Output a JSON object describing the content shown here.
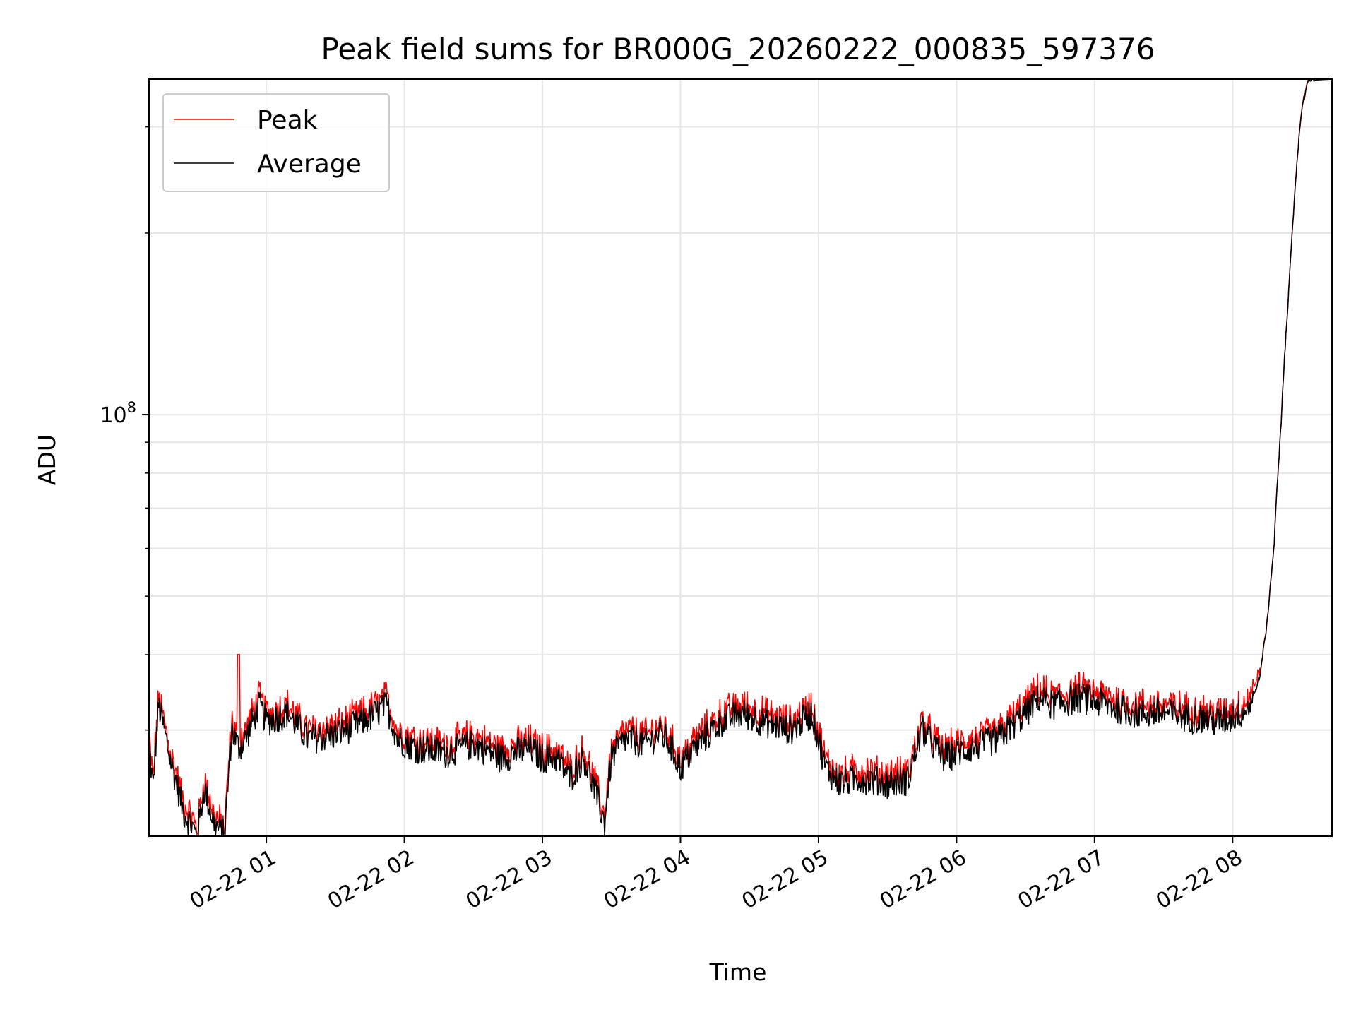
{
  "chart_data": {
    "type": "line",
    "title": "Peak field sums for BR000G_20260222_000835_597376",
    "xlabel": "Time",
    "ylabel": "ADU",
    "x_ticks": [
      "02-22 01",
      "02-22 02",
      "02-22 03",
      "02-22 04",
      "02-22 05",
      "02-22 06",
      "02-22 07",
      "02-22 08"
    ],
    "x_range_hours": [
      0.15,
      8.72
    ],
    "y_scale": "log",
    "y_range": [
      20000000,
      360000000
    ],
    "y_tick_major": {
      "value": 100000000,
      "base": "10",
      "exp": "8"
    },
    "y_tick_minor": [
      30000000,
      40000000,
      50000000,
      60000000,
      70000000,
      80000000,
      90000000,
      200000000,
      300000000
    ],
    "grid": true,
    "legend_position": "upper-left",
    "series": [
      {
        "name": "Peak",
        "color": "#ff0000"
      },
      {
        "name": "Average",
        "color": "#000000"
      }
    ],
    "average_keypoints": {
      "x_hours": [
        0.15,
        0.18,
        0.22,
        0.3,
        0.4,
        0.5,
        0.55,
        0.62,
        0.7,
        0.75,
        0.8,
        0.85,
        0.95,
        1.0,
        1.15,
        1.3,
        1.5,
        1.7,
        1.8,
        1.87,
        1.95,
        2.1,
        2.3,
        2.5,
        2.7,
        2.9,
        3.0,
        3.1,
        3.2,
        3.3,
        3.4,
        3.45,
        3.5,
        3.6,
        3.75,
        3.85,
        3.9,
        4.0,
        4.1,
        4.3,
        4.45,
        4.6,
        4.8,
        4.95,
        5.05,
        5.15,
        5.3,
        5.5,
        5.65,
        5.75,
        5.9,
        6.1,
        6.3,
        6.5,
        6.6,
        6.7,
        6.9,
        7.1,
        7.3,
        7.5,
        7.7,
        7.9,
        8.0,
        8.1,
        8.15,
        8.2,
        8.25,
        8.3,
        8.35,
        8.4,
        8.45,
        8.5,
        8.55,
        8.72
      ],
      "y_millions": [
        28,
        24,
        33,
        27,
        22,
        20,
        24,
        21,
        20,
        30,
        28,
        29,
        33,
        31,
        32,
        29,
        29.5,
        31,
        32,
        33,
        29,
        28,
        27.5,
        28.5,
        27,
        28,
        27,
        27,
        25,
        27,
        23,
        21,
        27,
        29,
        28.5,
        29.5,
        29,
        26,
        28,
        31,
        32,
        31,
        30,
        32,
        26,
        24.5,
        25,
        24.5,
        24.8,
        30,
        27,
        28,
        29,
        32,
        34,
        33,
        34,
        33,
        32,
        32,
        31.5,
        31,
        31.5,
        32.5,
        34,
        37,
        45,
        60,
        95,
        150,
        230,
        320,
        360,
        360
      ]
    }
  }
}
